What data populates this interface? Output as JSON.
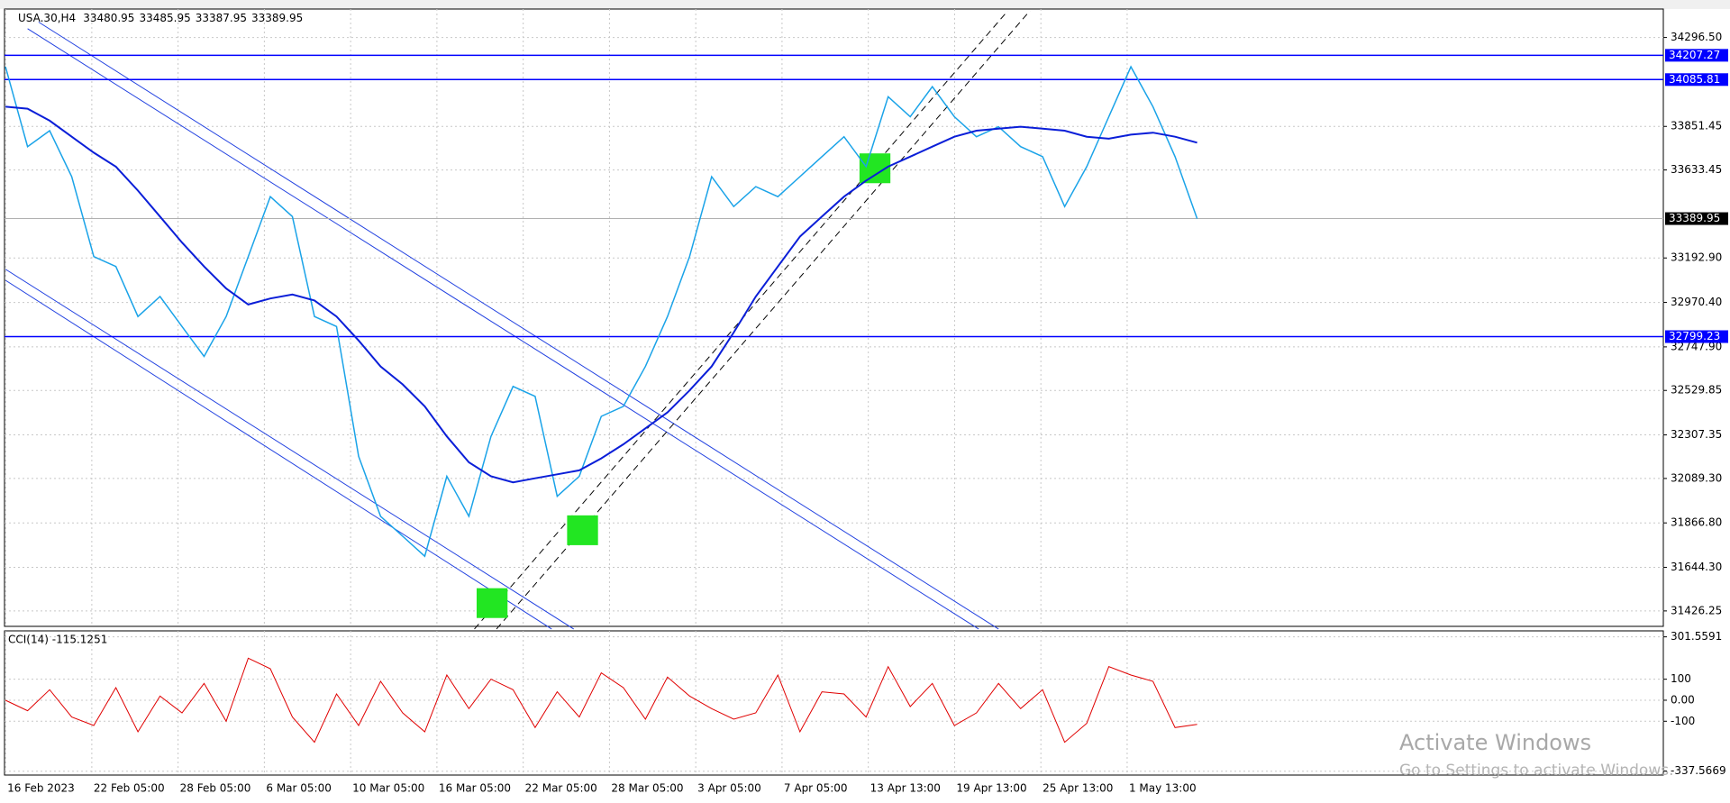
{
  "chart_data": {
    "type": "line",
    "title": "USA.30,H4",
    "header_values": [
      33480.95,
      33485.95,
      33387.95,
      33389.95
    ],
    "x_axis_labels": [
      "16 Feb 2023",
      "22 Feb 05:00",
      "28 Feb 05:00",
      "6 Mar 05:00",
      "10 Mar 05:00",
      "16 Mar 05:00",
      "22 Mar 05:00",
      "28 Mar 05:00",
      "3 Apr 05:00",
      "7 Apr 05:00",
      "13 Apr 13:00",
      "19 Apr 13:00",
      "25 Apr 13:00",
      "1 May 13:00"
    ],
    "price": {
      "color": "#1aa3e8",
      "values": [
        34150,
        33750,
        33830,
        33600,
        33200,
        33150,
        32900,
        33000,
        32850,
        32700,
        32900,
        33200,
        33500,
        33400,
        32900,
        32850,
        32200,
        31900,
        31800,
        31700,
        32100,
        31900,
        32300,
        32550,
        32500,
        32000,
        32100,
        32400,
        32450,
        32650,
        32900,
        33200,
        33600,
        33450,
        33550,
        33500,
        33600,
        33700,
        33800,
        33650,
        34000,
        33900,
        34050,
        33900,
        33800,
        33850,
        33750,
        33700,
        33450,
        33650,
        33900,
        34150,
        33950,
        33700,
        33389.95
      ]
    },
    "ma": {
      "color": "#0a1ed8",
      "values": [
        33950,
        33940,
        33880,
        33800,
        33720,
        33650,
        33530,
        33400,
        33270,
        33150,
        33040,
        32960,
        32990,
        33010,
        32980,
        32900,
        32780,
        32650,
        32560,
        32450,
        32300,
        32170,
        32100,
        32070,
        32090,
        32110,
        32130,
        32190,
        32260,
        32340,
        32420,
        32530,
        32650,
        32820,
        33000,
        33150,
        33300,
        33400,
        33500,
        33580,
        33650,
        33700,
        33750,
        33800,
        33830,
        33840,
        33850,
        33840,
        33830,
        33800,
        33790,
        33810,
        33820,
        33800,
        33770
      ]
    },
    "ylim": [
      31349,
      34439
    ],
    "yticks": [
      {
        "value": 34296.5,
        "label": "34296.50"
      },
      {
        "value": 33851.45,
        "label": "33851.45"
      },
      {
        "value": 33633.45,
        "label": "33633.45"
      },
      {
        "value": 33192.9,
        "label": "33192.90"
      },
      {
        "value": 32970.4,
        "label": "32970.40"
      },
      {
        "value": 32747.9,
        "label": "32747.90"
      },
      {
        "value": 32529.85,
        "label": "32529.85"
      },
      {
        "value": 32307.35,
        "label": "32307.35"
      },
      {
        "value": 32089.3,
        "label": "32089.30"
      },
      {
        "value": 31866.8,
        "label": "31866.80"
      },
      {
        "value": 31644.3,
        "label": "31644.30"
      },
      {
        "value": 31426.25,
        "label": "31426.25"
      }
    ],
    "levels": [
      34207.27,
      34085.81,
      32799.23
    ],
    "level_color": "#0000ff",
    "last_price": 33389.95,
    "grid": true,
    "cci": {
      "title": "CCI(14) -115.1251",
      "color": "#e00000",
      "values": [
        0,
        -50,
        50,
        -80,
        -120,
        60,
        -150,
        20,
        -60,
        80,
        -100,
        200,
        150,
        -80,
        -200,
        30,
        -120,
        90,
        -60,
        -150,
        120,
        -40,
        100,
        50,
        -130,
        40,
        -80,
        130,
        60,
        -90,
        110,
        20,
        -40,
        -90,
        -60,
        120,
        -150,
        40,
        30,
        -80,
        160,
        -30,
        80,
        -120,
        -60,
        80,
        -40,
        50,
        -200,
        -110,
        160,
        120,
        90,
        -130,
        -115.1251
      ],
      "ylim": [
        -356,
        330
      ],
      "yticks": [
        301.5591,
        100,
        {
          "value": 0,
          "label": "0.00"
        },
        -100,
        -337.5669
      ]
    },
    "watermark": [
      "Activate Windows",
      "Go to Settings to activate Windows."
    ]
  }
}
